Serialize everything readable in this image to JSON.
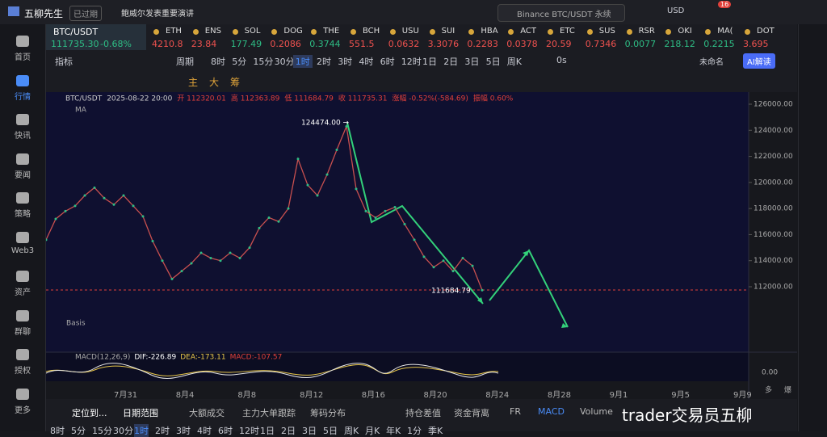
{
  "header": {
    "app": "五柳先生",
    "status": "已过期",
    "news": "鲍威尔发表重要演讲",
    "search": "Binance BTC/USDT 永续",
    "currency": "USD",
    "badge": "16"
  },
  "sidebar": [
    "首页",
    "行情",
    "快讯",
    "要闻",
    "策略",
    "Web3",
    "资产",
    "群聊",
    "授权",
    "更多"
  ],
  "tickers": {
    "main": {
      "symbol": "BTC/USDT",
      "price": "111735.30",
      "change": "-0.68%"
    },
    "items": [
      {
        "symbol": "ETH",
        "price": "4210.8",
        "color": "#f0524f"
      },
      {
        "symbol": "ENS",
        "price": "23.84",
        "color": "#f0524f"
      },
      {
        "symbol": "SOL",
        "price": "177.49",
        "color": "#2ebd85"
      },
      {
        "symbol": "DOG",
        "price": "0.2086",
        "color": "#f0524f"
      },
      {
        "symbol": "THE",
        "price": "0.3744",
        "color": "#2ebd85"
      },
      {
        "symbol": "BCH",
        "price": "551.5",
        "color": "#f0524f"
      },
      {
        "symbol": "USU",
        "price": "0.0632",
        "color": "#f0524f"
      },
      {
        "symbol": "SUI",
        "price": "3.3076",
        "color": "#f0524f"
      },
      {
        "symbol": "HBA",
        "price": "0.2283",
        "color": "#f0524f"
      },
      {
        "symbol": "ACT",
        "price": "0.0378",
        "color": "#f0524f"
      },
      {
        "symbol": "ETC",
        "price": "20.59",
        "color": "#f0524f"
      },
      {
        "symbol": "SUS",
        "price": "0.7346",
        "color": "#f0524f"
      },
      {
        "symbol": "RSR",
        "price": "0.0077",
        "color": "#2ebd85"
      },
      {
        "symbol": "OKI",
        "price": "218.12",
        "color": "#2ebd85"
      },
      {
        "symbol": "MA(",
        "price": "0.2215",
        "color": "#2ebd85"
      },
      {
        "symbol": "DOT",
        "price": "3.695",
        "color": "#f0524f"
      }
    ]
  },
  "toolbar": {
    "indicator": "指标",
    "period": "周期",
    "intervals": [
      "8时",
      "5分",
      "15分",
      "30分",
      "1时",
      "2时",
      "3时",
      "4时",
      "6时",
      "12时",
      "1日",
      "2日",
      "3日",
      "5日",
      "周K"
    ],
    "active": "1时",
    "seconds": "0s",
    "layout": "未命名",
    "ai": "AI解读",
    "tools": [
      "主",
      "大",
      "筹"
    ]
  },
  "chart": {
    "symbol": "BTC/USDT",
    "time": "2025-08-22 20:00",
    "open": "开 112320.01",
    "high": "高 112363.89",
    "low": "低 111684.79",
    "close": "收 111735.31",
    "change": "涨幅 -0.52%(-584.69)",
    "amplitude": "振幅 0.60%",
    "ma": "MA",
    "basis": "Basis",
    "macd": {
      "name": "MACD(12,26,9)",
      "dif": "DIF:-226.89",
      "dea": "DEA:-173.11",
      "macd": "MACD:-107.57",
      "zero": "0.00"
    },
    "yticks": [
      {
        "value": 126000,
        "label": "126000.00"
      },
      {
        "value": 124000,
        "label": "124000.00"
      },
      {
        "value": 122000,
        "label": "122000.00"
      },
      {
        "value": 120000,
        "label": "120000.00"
      },
      {
        "value": 118000,
        "label": "118000.00"
      },
      {
        "value": 116000,
        "label": "116000.00"
      },
      {
        "value": 114000,
        "label": "114000.00"
      },
      {
        "value": 112000,
        "label": "112000.00"
      }
    ],
    "dates": [
      "7月31",
      "8月4",
      "8月8",
      "8月12",
      "8月16",
      "8月20",
      "8月24",
      "8月28",
      "9月1",
      "9月5",
      "9月9"
    ],
    "high_label": "124474.00 →",
    "low_label": "111684.79",
    "axis_marks": [
      "多",
      "爆"
    ],
    "prices": [
      115600,
      117200,
      117800,
      118200,
      119000,
      119600,
      118800,
      118300,
      119000,
      118200,
      117400,
      115500,
      114000,
      112600,
      113200,
      113800,
      114600,
      114200,
      114000,
      114600,
      114200,
      115000,
      116500,
      117300,
      117000,
      118000,
      121800,
      119800,
      119000,
      120600,
      122500,
      124300,
      119500,
      117800,
      117300,
      117800,
      118100,
      116800,
      115600,
      114300,
      113500,
      114000,
      113200,
      114200,
      113600,
      111735
    ]
  },
  "bottom_tabs": [
    "定位到...",
    "日期范围",
    "大额成交",
    "主力大单跟踪",
    "筹码分布",
    "持仓差值",
    "资金背离",
    "FR",
    "MACD",
    "Volume"
  ],
  "periods": [
    "8时",
    "5分",
    "15分",
    "30分",
    "1时",
    "2时",
    "3时",
    "4时",
    "6时",
    "12时",
    "1日",
    "2日",
    "3日",
    "5日",
    "周K",
    "月K",
    "年K",
    "1分",
    "季K"
  ],
  "watermark": "trader交易员五柳"
}
